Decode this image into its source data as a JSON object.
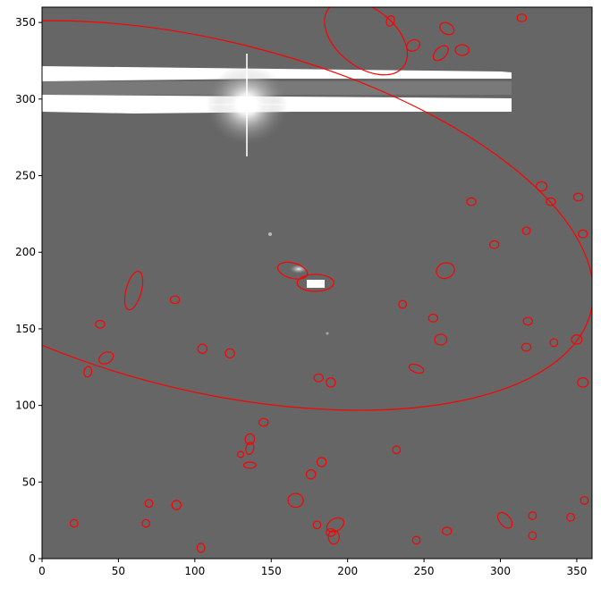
{
  "figure": {
    "axes": {
      "xlim": [
        0,
        360
      ],
      "ylim": [
        0,
        360
      ],
      "x_ticks": [
        0,
        50,
        100,
        150,
        200,
        250,
        300,
        350
      ],
      "y_ticks": [
        0,
        50,
        100,
        150,
        200,
        250,
        300,
        350
      ]
    },
    "overlay_color": "#ff0000",
    "sources": [
      {
        "x": 107,
        "y": 224,
        "a": 260,
        "b": 114,
        "angle": -14
      },
      {
        "x": 212,
        "y": 340,
        "a": 31,
        "b": 19,
        "angle": -38
      },
      {
        "x": 164,
        "y": 188,
        "a": 10,
        "b": 5,
        "angle": -15
      },
      {
        "x": 179,
        "y": 180,
        "a": 12,
        "b": 5.5,
        "angle": 0
      },
      {
        "x": 60,
        "y": 175,
        "a": 13,
        "b": 5,
        "angle": 75
      },
      {
        "x": 265,
        "y": 346,
        "a": 5,
        "b": 3.5,
        "angle": -30
      },
      {
        "x": 243,
        "y": 335,
        "a": 4.5,
        "b": 3.5,
        "angle": 30
      },
      {
        "x": 261,
        "y": 330,
        "a": 6,
        "b": 3.5,
        "angle": 45
      },
      {
        "x": 275,
        "y": 332,
        "a": 4.5,
        "b": 3.5,
        "angle": 0
      },
      {
        "x": 228,
        "y": 351,
        "a": 3.5,
        "b": 2.5,
        "angle": 70
      },
      {
        "x": 314,
        "y": 353,
        "a": 3,
        "b": 2.5,
        "angle": 0
      },
      {
        "x": 327,
        "y": 243,
        "a": 3.5,
        "b": 3,
        "angle": 0
      },
      {
        "x": 351,
        "y": 236,
        "a": 3,
        "b": 2.5,
        "angle": 0
      },
      {
        "x": 333,
        "y": 233,
        "a": 3,
        "b": 2.5,
        "angle": 0
      },
      {
        "x": 281,
        "y": 233,
        "a": 3,
        "b": 2.5,
        "angle": 0
      },
      {
        "x": 354,
        "y": 212,
        "a": 3,
        "b": 2.5,
        "angle": 0
      },
      {
        "x": 317,
        "y": 214,
        "a": 2.5,
        "b": 2.5,
        "angle": 0
      },
      {
        "x": 296,
        "y": 205,
        "a": 3,
        "b": 2.5,
        "angle": 0
      },
      {
        "x": 264,
        "y": 188,
        "a": 6,
        "b": 5,
        "angle": 20
      },
      {
        "x": 236,
        "y": 166,
        "a": 2.5,
        "b": 2.5,
        "angle": 0
      },
      {
        "x": 256,
        "y": 157,
        "a": 3,
        "b": 2.5,
        "angle": 0
      },
      {
        "x": 318,
        "y": 155,
        "a": 3,
        "b": 2.5,
        "angle": 0
      },
      {
        "x": 261,
        "y": 143,
        "a": 4,
        "b": 3.5,
        "angle": 0
      },
      {
        "x": 350,
        "y": 143,
        "a": 3.5,
        "b": 3,
        "angle": 0
      },
      {
        "x": 335,
        "y": 141,
        "a": 2.5,
        "b": 2.5,
        "angle": 0
      },
      {
        "x": 317,
        "y": 138,
        "a": 3,
        "b": 2.5,
        "angle": 0
      },
      {
        "x": 245,
        "y": 124,
        "a": 5,
        "b": 2.5,
        "angle": -20
      },
      {
        "x": 354,
        "y": 115,
        "a": 3.5,
        "b": 3,
        "angle": 0
      },
      {
        "x": 181,
        "y": 118,
        "a": 3,
        "b": 2.5,
        "angle": 0
      },
      {
        "x": 189,
        "y": 115,
        "a": 3,
        "b": 3,
        "angle": 0
      },
      {
        "x": 87,
        "y": 169,
        "a": 3,
        "b": 2.5,
        "angle": 0
      },
      {
        "x": 38,
        "y": 153,
        "a": 3,
        "b": 2.5,
        "angle": 0
      },
      {
        "x": 105,
        "y": 137,
        "a": 3,
        "b": 3,
        "angle": 0
      },
      {
        "x": 123,
        "y": 134,
        "a": 3,
        "b": 3,
        "angle": 0
      },
      {
        "x": 42,
        "y": 131,
        "a": 5,
        "b": 3.5,
        "angle": 30
      },
      {
        "x": 30,
        "y": 122,
        "a": 3.5,
        "b": 2.5,
        "angle": 80
      },
      {
        "x": 145,
        "y": 89,
        "a": 3,
        "b": 2.5,
        "angle": 0
      },
      {
        "x": 136,
        "y": 78,
        "a": 3.5,
        "b": 3,
        "angle": 80
      },
      {
        "x": 136,
        "y": 72,
        "a": 4,
        "b": 2.5,
        "angle": 80
      },
      {
        "x": 130,
        "y": 68,
        "a": 2,
        "b": 2,
        "angle": 0
      },
      {
        "x": 136,
        "y": 61,
        "a": 4,
        "b": 2,
        "angle": 0
      },
      {
        "x": 232,
        "y": 71,
        "a": 2.5,
        "b": 2.5,
        "angle": 0
      },
      {
        "x": 183,
        "y": 63,
        "a": 3,
        "b": 3,
        "angle": 0
      },
      {
        "x": 176,
        "y": 55,
        "a": 3,
        "b": 3,
        "angle": 0
      },
      {
        "x": 166,
        "y": 38,
        "a": 5,
        "b": 4.5,
        "angle": 0
      },
      {
        "x": 70,
        "y": 36,
        "a": 2.5,
        "b": 2.5,
        "angle": 0
      },
      {
        "x": 88,
        "y": 35,
        "a": 3,
        "b": 3,
        "angle": 0
      },
      {
        "x": 355,
        "y": 38,
        "a": 2.5,
        "b": 2.5,
        "angle": 0
      },
      {
        "x": 303,
        "y": 25,
        "a": 6,
        "b": 3.5,
        "angle": -50
      },
      {
        "x": 321,
        "y": 28,
        "a": 2.5,
        "b": 2.5,
        "angle": 0
      },
      {
        "x": 346,
        "y": 27,
        "a": 2.5,
        "b": 2.5,
        "angle": 0
      },
      {
        "x": 192,
        "y": 22,
        "a": 6,
        "b": 4,
        "angle": 30
      },
      {
        "x": 189,
        "y": 17,
        "a": 3,
        "b": 2.5,
        "angle": 0
      },
      {
        "x": 191,
        "y": 14,
        "a": 3.5,
        "b": 4.5,
        "angle": 0
      },
      {
        "x": 180,
        "y": 22,
        "a": 2.5,
        "b": 2.5,
        "angle": 0
      },
      {
        "x": 21,
        "y": 23,
        "a": 2.5,
        "b": 2.5,
        "angle": 0
      },
      {
        "x": 68,
        "y": 23,
        "a": 2.5,
        "b": 2.5,
        "angle": 0
      },
      {
        "x": 265,
        "y": 18,
        "a": 3,
        "b": 2.5,
        "angle": 0
      },
      {
        "x": 321,
        "y": 15,
        "a": 2.5,
        "b": 2.5,
        "angle": 0
      },
      {
        "x": 245,
        "y": 12,
        "a": 2.5,
        "b": 2.5,
        "angle": 0
      },
      {
        "x": 104,
        "y": 7,
        "a": 2.5,
        "b": 3,
        "angle": 0
      }
    ]
  }
}
